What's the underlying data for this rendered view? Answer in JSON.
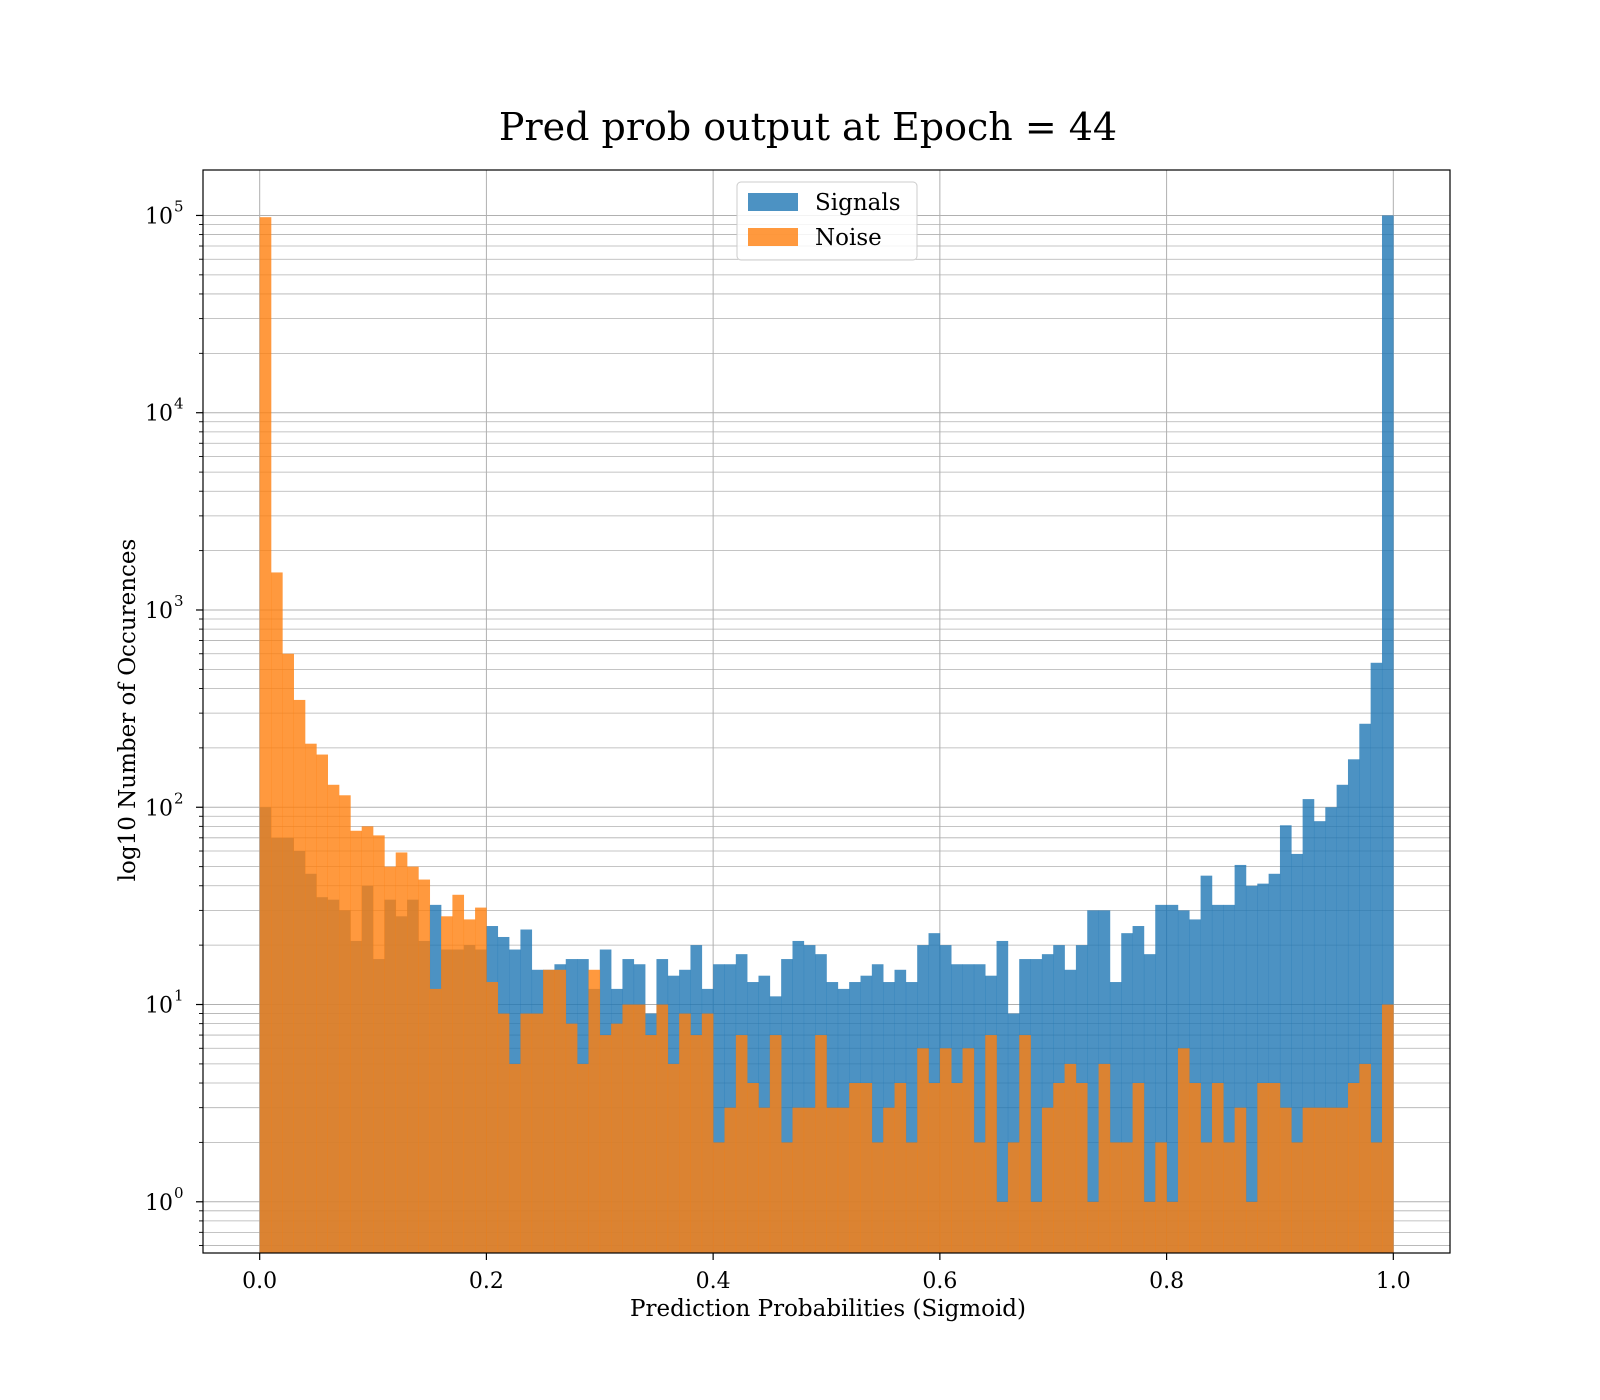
{
  "chart_data": {
    "type": "bar",
    "title": "Pred prob output at Epoch = 44",
    "xlabel": "Prediction Probabilities (Sigmoid)",
    "ylabel": "log10 Number of Occurences",
    "yscale": "log",
    "xlim": [
      -0.05,
      1.05
    ],
    "ylim": [
      0.55,
      170000
    ],
    "xticks": [
      0.0,
      0.2,
      0.4,
      0.6,
      0.8,
      1.0
    ],
    "xtick_labels": [
      "0.0",
      "0.2",
      "0.4",
      "0.6",
      "0.8",
      "1.0"
    ],
    "yticks": [
      1,
      10,
      100,
      1000,
      10000,
      100000
    ],
    "ytick_labels": [
      {
        "base": "10",
        "exp": "0"
      },
      {
        "base": "10",
        "exp": "1"
      },
      {
        "base": "10",
        "exp": "2"
      },
      {
        "base": "10",
        "exp": "3"
      },
      {
        "base": "10",
        "exp": "4"
      },
      {
        "base": "10",
        "exp": "5"
      }
    ],
    "grid": true,
    "legend_position": "top-center",
    "bin_range": [
      0.0,
      1.0
    ],
    "bins": 100,
    "series": [
      {
        "name": "Signals",
        "color": "#1f77b4",
        "opacity": 0.8,
        "values": [
          100,
          70,
          70,
          60,
          46,
          35,
          34,
          30,
          21,
          40,
          17,
          34,
          28,
          34,
          21,
          32,
          19,
          19,
          20,
          19,
          25,
          22,
          19,
          24,
          15,
          15,
          16,
          17,
          17,
          12,
          19,
          12,
          17,
          16,
          9,
          17,
          14,
          15,
          20,
          12,
          16,
          16,
          18,
          13,
          14,
          11,
          17,
          21,
          20,
          18,
          13,
          12,
          13,
          14,
          16,
          13,
          15,
          13,
          20,
          23,
          20,
          16,
          16,
          16,
          14,
          21,
          9,
          17,
          17,
          18,
          20,
          15,
          20,
          30,
          30,
          13,
          23,
          25,
          18,
          32,
          32,
          30,
          27,
          45,
          32,
          32,
          51,
          40,
          41,
          46,
          81,
          58,
          110,
          85,
          100,
          130,
          175,
          265,
          540,
          100000
        ]
      },
      {
        "name": "Noise",
        "color": "#ff7f0e",
        "opacity": 0.8,
        "values": [
          98000,
          1550,
          600,
          350,
          210,
          185,
          130,
          115,
          76,
          80,
          72,
          50,
          59,
          50,
          43,
          12,
          28,
          36,
          27,
          31,
          13,
          9,
          5,
          9,
          9,
          15,
          15,
          8,
          5,
          15,
          7,
          8,
          10,
          10,
          7,
          10,
          5,
          9,
          7,
          9,
          2,
          3,
          7,
          4,
          3,
          7,
          2,
          3,
          3,
          7,
          3,
          3,
          4,
          4,
          2,
          3,
          4,
          2,
          6,
          4,
          6,
          4,
          6,
          2,
          7,
          1,
          2,
          7,
          1,
          3,
          4,
          5,
          4,
          1,
          5,
          2,
          2,
          4,
          1,
          2,
          1,
          6,
          4,
          2,
          4,
          2,
          3,
          1,
          4,
          4,
          3,
          2,
          3,
          3,
          3,
          3,
          4,
          5,
          2,
          10
        ]
      }
    ]
  }
}
